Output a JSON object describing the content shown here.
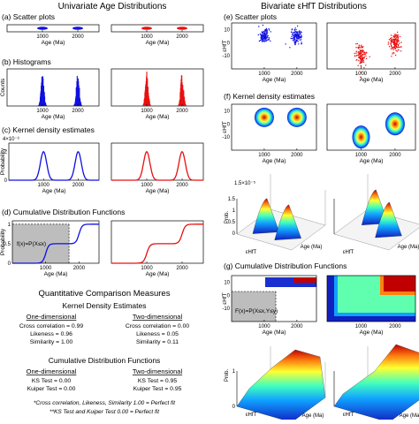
{
  "left_title": "Univariate Age Distributions",
  "right_title": "Bivariate εHfT Distributions",
  "panels": {
    "a": "(a) Scatter plots",
    "b": "(b) Histograms",
    "c": "(c) Kernel density estimates",
    "d": "(d) Cumulative Distribution Functions",
    "e": "(e) Scatter plots",
    "f": "(f) Kernel density estimates",
    "g": "(g) Cumulative Distribution Functions"
  },
  "axes": {
    "age": "Age (Ma)",
    "counts": "Counts",
    "probability": "Probability",
    "ehft": "εHfT",
    "prob_short": "Prob.",
    "kde_scale": "4×10⁻³",
    "kde3d_scale": "1.5×10⁻⁵",
    "ticks_age": [
      "1000",
      "2000"
    ],
    "ticks_age_3d": [
      "0",
      "1000",
      "2000",
      "2500"
    ],
    "ticks_ehft": [
      "10",
      "0",
      "-10"
    ],
    "ticks_ehft_3d": [
      "10",
      "0",
      "-10",
      "-20"
    ],
    "ticks_prob": [
      "1",
      "0.5",
      "0"
    ],
    "ticks_prob01": [
      "1",
      "0"
    ],
    "ticks_kde": [
      "0",
      "2"
    ],
    "ticks_kde3d": [
      "1.5",
      "1",
      "0.5",
      "0"
    ]
  },
  "cdf_formula_1d": "f(x)=P(X≤x)",
  "cdf_formula_2d": "F(x)=P(X≤x,Y≤y)",
  "comparison": {
    "title": "Quantitative Comparison Measures",
    "kde": {
      "title": "Kernel Density Estimates",
      "one_d_title": "One-dimensional",
      "two_d_title": "Two-dimensional",
      "one_d": [
        "Cross correlation = 0.99",
        "Likeness = 0.96",
        "Similarity = 1.00"
      ],
      "two_d": [
        "Cross correlation = 0.00",
        "Likeness = 0.05",
        "Similarity = 0.11"
      ]
    },
    "cdf": {
      "title": "Cumulative Distribution Functions",
      "one_d_title": "One-dimensional",
      "two_d_title": "Two-dimensional",
      "one_d": [
        "KS Test = 0.00",
        "Kuiper Test = 0.00"
      ],
      "two_d": [
        "KS Test = 0.95",
        "Kuiper Test = 0.95"
      ]
    },
    "footnotes": [
      "*Cross correlation, Likeness, Similarity 1.00 = Perfect fit",
      "**KS Test and Kuiper Test 0.00 = Perfect fit"
    ]
  },
  "colors": {
    "blue": "#1010e0",
    "red": "#e81010",
    "gray": "#bdbdbd"
  },
  "chart_data": [
    {
      "type": "scatter",
      "panel": "a",
      "series": [
        {
          "color": "#1010e0",
          "x_clusters": [
            1000,
            2000
          ],
          "y": 0
        },
        {
          "color": "#e81010",
          "x_clusters": [
            1000,
            2000
          ],
          "y": 0
        }
      ],
      "xlim": [
        0,
        2600
      ]
    },
    {
      "type": "bar",
      "panel": "b",
      "series": [
        {
          "color": "#1010e0",
          "peaks": [
            1000,
            2000
          ]
        },
        {
          "color": "#e81010",
          "peaks": [
            1000,
            2000
          ]
        }
      ],
      "xlim": [
        0,
        2600
      ]
    },
    {
      "type": "line",
      "panel": "c",
      "series": [
        {
          "color": "#1010e0",
          "peaks": [
            1000,
            2000
          ],
          "peak_value": 2
        },
        {
          "color": "#e81010",
          "peaks": [
            1000,
            2000
          ],
          "peak_value": 2
        }
      ],
      "xlim": [
        0,
        2600
      ],
      "ylim": [
        0,
        2.6
      ]
    },
    {
      "type": "line",
      "panel": "d",
      "series": [
        {
          "color": "#1010e0",
          "x": [
            0,
            850,
            1000,
            1150,
            1850,
            2000,
            2150,
            2600
          ],
          "y": [
            0,
            0,
            0.5,
            0.5,
            0.5,
            1,
            1,
            1
          ]
        },
        {
          "color": "#e81010",
          "x": [
            0,
            850,
            1000,
            1150,
            1850,
            2000,
            2150,
            2600
          ],
          "y": [
            0,
            0,
            0.5,
            0.5,
            0.5,
            1,
            1,
            1
          ]
        }
      ],
      "xlim": [
        0,
        2600
      ],
      "ylim": [
        0,
        1
      ]
    },
    {
      "type": "scatter",
      "panel": "e",
      "series": [
        {
          "color": "#1010e0",
          "clusters": [
            [
              1000,
              5
            ],
            [
              2000,
              5
            ]
          ]
        },
        {
          "color": "#e81010",
          "clusters": [
            [
              1000,
              -10
            ],
            [
              2000,
              0
            ]
          ]
        }
      ],
      "xlim": [
        0,
        2600
      ],
      "ylim": [
        -20,
        15
      ]
    },
    {
      "type": "heatmap",
      "panel": "f",
      "series": [
        {
          "peaks": [
            [
              1000,
              5
            ],
            [
              2000,
              5
            ]
          ]
        },
        {
          "peaks": [
            [
              1000,
              -10
            ],
            [
              2000,
              0
            ]
          ]
        }
      ],
      "xlim": [
        0,
        2600
      ],
      "ylim": [
        -20,
        15
      ]
    },
    {
      "type": "heatmap",
      "panel": "g",
      "series": [
        {
          "name": ""
        },
        {
          "name": ""
        }
      ],
      "xlim": [
        0,
        2600
      ],
      "ylim": [
        -20,
        15
      ],
      "zlim": [
        0,
        1
      ]
    }
  ]
}
